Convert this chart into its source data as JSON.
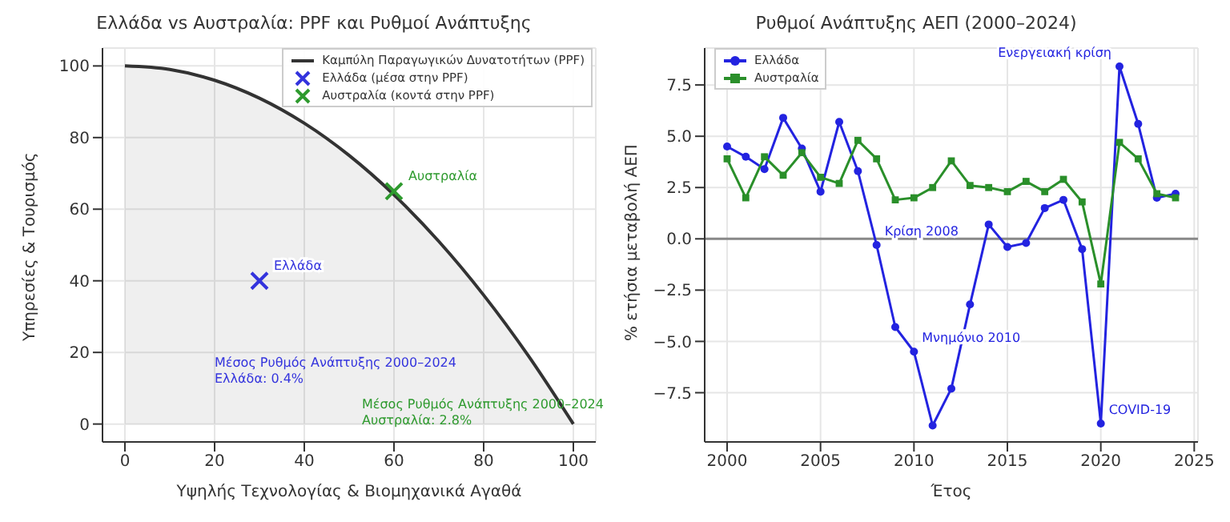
{
  "chart_data": [
    {
      "type": "area",
      "title": "Ελλάδα vs Αυστραλία: PPF και Ρυθμοί Ανάπτυξης",
      "xlabel": "Υψηλής Τεχνολογίας & Βιομηχανικά Αγαθά",
      "ylabel": "Υπηρεσίες & Τουρισμός",
      "xlim": [
        -5,
        105
      ],
      "ylim": [
        -5,
        105
      ],
      "xticks": [
        0,
        20,
        40,
        60,
        80,
        100
      ],
      "yticks": [
        0,
        20,
        40,
        60,
        80,
        100
      ],
      "grid": true,
      "legend": "top right",
      "series": [
        {
          "name": "Καμπύλη Παραγωγικών Δυνατοτήτων (PPF)",
          "color": "#333333",
          "marker": "none",
          "x": [
            0,
            10,
            20,
            30,
            40,
            50,
            60,
            70,
            80,
            90,
            100
          ],
          "values": [
            100,
            99,
            96,
            91,
            84,
            75,
            64,
            51,
            36,
            19,
            0
          ]
        },
        {
          "name": "Ελλάδα (μέσα στην PPF)",
          "type": "scatter",
          "color": "#3333dd",
          "marker": "cross",
          "x": [
            30
          ],
          "values": [
            40
          ]
        },
        {
          "name": "Αυστραλία (κοντά στην PPF)",
          "type": "scatter",
          "color": "#2e9a2e",
          "marker": "cross",
          "x": [
            60
          ],
          "values": [
            65
          ]
        }
      ],
      "annotations": [
        {
          "text": "Ελλάδα",
          "x": 30,
          "y": 40
        },
        {
          "text": "Αυστραλία",
          "x": 60,
          "y": 65
        },
        "Μέσος Ρυθμός Ανάπτυξης 2000–2024\nΕλλάδα: 0.4%",
        "Μέσος Ρυθμός Ανάπτυξης 2000–2024\nΑυστραλία: 2.8%"
      ]
    },
    {
      "type": "line",
      "title": "Ρυθμοί Ανάπτυξης ΑΕΠ (2000–2024)",
      "xlabel": "Έτος",
      "ylabel": "% ετήσια μεταβολή ΑΕΠ",
      "xlim": [
        1998.8,
        2025.2
      ],
      "ylim": [
        -9.9,
        9.3
      ],
      "xticks": [
        2000,
        2005,
        2010,
        2015,
        2020,
        2025
      ],
      "yticks": [
        {
          "value": -7.5,
          "label": "−7.5"
        },
        {
          "value": -5,
          "label": "−5.0"
        },
        {
          "value": -2.5,
          "label": "−2.5"
        },
        {
          "value": 0,
          "label": "0.0"
        },
        {
          "value": 2.5,
          "label": "2.5"
        },
        {
          "value": 5,
          "label": "5.0"
        },
        {
          "value": 7.5,
          "label": "7.5"
        }
      ],
      "grid": true,
      "legend": "top left",
      "x": [
        2000,
        2001,
        2002,
        2003,
        2004,
        2005,
        2006,
        2007,
        2008,
        2009,
        2010,
        2011,
        2012,
        2013,
        2014,
        2015,
        2016,
        2017,
        2018,
        2019,
        2020,
        2021,
        2022,
        2023,
        2024
      ],
      "series": [
        {
          "name": "Ελλάδα",
          "color": "#2323e0",
          "marker": "circle",
          "values": [
            4.5,
            4.0,
            3.4,
            5.9,
            4.4,
            2.3,
            5.7,
            3.3,
            -0.3,
            -4.3,
            -5.5,
            -9.1,
            -7.3,
            -3.2,
            0.7,
            -0.4,
            -0.2,
            1.5,
            1.9,
            -0.5,
            -9.0,
            8.4,
            5.6,
            2.0,
            2.2
          ]
        },
        {
          "name": "Αυστραλία",
          "color": "#2a8f2a",
          "marker": "square",
          "values": [
            3.9,
            2.0,
            4.0,
            3.1,
            4.2,
            3.0,
            2.7,
            4.8,
            3.9,
            1.9,
            2.0,
            2.5,
            3.8,
            2.6,
            2.5,
            2.3,
            2.8,
            2.3,
            2.9,
            1.8,
            -2.2,
            4.7,
            3.9,
            2.2,
            2.0
          ]
        }
      ],
      "ref_lines": [
        {
          "axis": "y",
          "value": 0,
          "color": "#888888"
        }
      ],
      "annotations": [
        {
          "text": "Κρίση 2008",
          "x": 2008,
          "y": -0.3
        },
        {
          "text": "Μνημόνιο 2010",
          "x": 2010,
          "y": -5.5
        },
        {
          "text": "COVID-19",
          "x": 2020,
          "y": -9.0
        },
        {
          "text": "Ενεργειακή κρίση",
          "x": 2021,
          "y": 8.4
        }
      ]
    }
  ]
}
